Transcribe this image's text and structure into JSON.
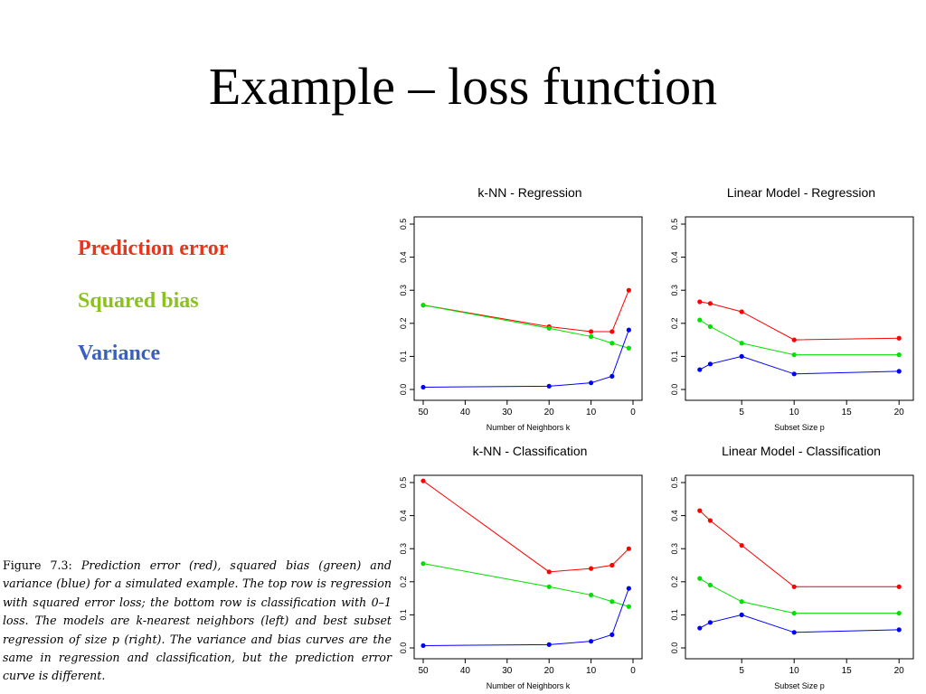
{
  "slide": {
    "title": "Example – loss function"
  },
  "legend": {
    "prediction_error": "Prediction error",
    "squared_bias": "Squared bias",
    "variance": "Variance"
  },
  "colors": {
    "prediction_error": "#e8361c",
    "squared_bias": "#8cc21e",
    "variance": "#3a5fbf",
    "red_series": "#ff0000",
    "green_series": "#00e000",
    "blue_series": "#0000ff"
  },
  "caption": {
    "label": "Figure 7.3:",
    "text": "Prediction error (red), squared bias (green) and variance (blue) for a simulated example. The top row is regression with squared error loss; the bottom row is classification with 0–1 loss. The models are k-nearest neighbors (left) and best subset regression of size p (right). The variance and bias curves are the same in regression and classification, but the prediction error curve is different."
  },
  "chart_data": [
    {
      "type": "line",
      "title": "k-NN - Regression",
      "xlabel": "Number of Neighbors k",
      "ylabel": "",
      "xlim": [
        50,
        0
      ],
      "ylim": [
        0,
        0.5
      ],
      "xticks": [
        50,
        40,
        30,
        20,
        10,
        0
      ],
      "yticks": [
        0.0,
        0.1,
        0.2,
        0.3,
        0.4,
        0.5
      ],
      "ytick_labels": [
        "0.0",
        "0.1",
        "0.2",
        "0.3",
        "0.4",
        "0.5"
      ],
      "x": [
        50,
        20,
        10,
        5,
        1
      ],
      "series": [
        {
          "color": "red",
          "values": [
            0.255,
            0.19,
            0.175,
            0.175,
            0.3
          ]
        },
        {
          "color": "green",
          "values": [
            0.255,
            0.185,
            0.16,
            0.14,
            0.125
          ]
        },
        {
          "color": "blue",
          "values": [
            0.007,
            0.01,
            0.02,
            0.04,
            0.18
          ]
        }
      ]
    },
    {
      "type": "line",
      "title": "Linear Model - Regression",
      "xlabel": "Subset Size p",
      "ylabel": "",
      "xlim": [
        0.5,
        20.5
      ],
      "ylim": [
        0,
        0.5
      ],
      "xticks": [
        5,
        10,
        15,
        20
      ],
      "yticks": [
        0.0,
        0.1,
        0.2,
        0.3,
        0.4,
        0.5
      ],
      "ytick_labels": [
        "0.0",
        "0.1",
        "0.2",
        "0.3",
        "0.4",
        "0.5"
      ],
      "x": [
        1,
        2,
        5,
        10,
        20
      ],
      "series": [
        {
          "color": "red",
          "values": [
            0.265,
            0.26,
            0.235,
            0.15,
            0.155
          ]
        },
        {
          "color": "green",
          "values": [
            0.21,
            0.19,
            0.14,
            0.105,
            0.105
          ]
        },
        {
          "color": "blue",
          "values": [
            0.06,
            0.077,
            0.1,
            0.047,
            0.055
          ]
        }
      ]
    },
    {
      "type": "line",
      "title": "k-NN - Classification",
      "xlabel": "Number of Neighbors k",
      "ylabel": "",
      "xlim": [
        50,
        0
      ],
      "ylim": [
        0,
        0.5
      ],
      "xticks": [
        50,
        40,
        30,
        20,
        10,
        0
      ],
      "yticks": [
        0.0,
        0.1,
        0.2,
        0.3,
        0.4,
        0.5
      ],
      "ytick_labels": [
        "0.0",
        "0.1",
        "0.2",
        "0.3",
        "0.4",
        "0.5"
      ],
      "x": [
        50,
        20,
        10,
        5,
        1
      ],
      "series": [
        {
          "color": "red",
          "values": [
            0.505,
            0.23,
            0.24,
            0.25,
            0.3
          ]
        },
        {
          "color": "green",
          "values": [
            0.255,
            0.185,
            0.16,
            0.14,
            0.125
          ]
        },
        {
          "color": "blue",
          "values": [
            0.007,
            0.01,
            0.02,
            0.04,
            0.18
          ]
        }
      ]
    },
    {
      "type": "line",
      "title": "Linear Model - Classification",
      "xlabel": "Subset Size p",
      "ylabel": "",
      "xlim": [
        0.5,
        20.5
      ],
      "ylim": [
        0,
        0.5
      ],
      "xticks": [
        5,
        10,
        15,
        20
      ],
      "yticks": [
        0.0,
        0.1,
        0.2,
        0.3,
        0.4,
        0.5
      ],
      "ytick_labels": [
        "0.0",
        "0.1",
        "0.2",
        "0.3",
        "0.4",
        "0.5"
      ],
      "x": [
        1,
        2,
        5,
        10,
        20
      ],
      "series": [
        {
          "color": "red",
          "values": [
            0.415,
            0.385,
            0.31,
            0.185,
            0.185
          ]
        },
        {
          "color": "green",
          "values": [
            0.21,
            0.19,
            0.14,
            0.105,
            0.105
          ]
        },
        {
          "color": "blue",
          "values": [
            0.06,
            0.077,
            0.1,
            0.047,
            0.055
          ]
        }
      ]
    }
  ]
}
